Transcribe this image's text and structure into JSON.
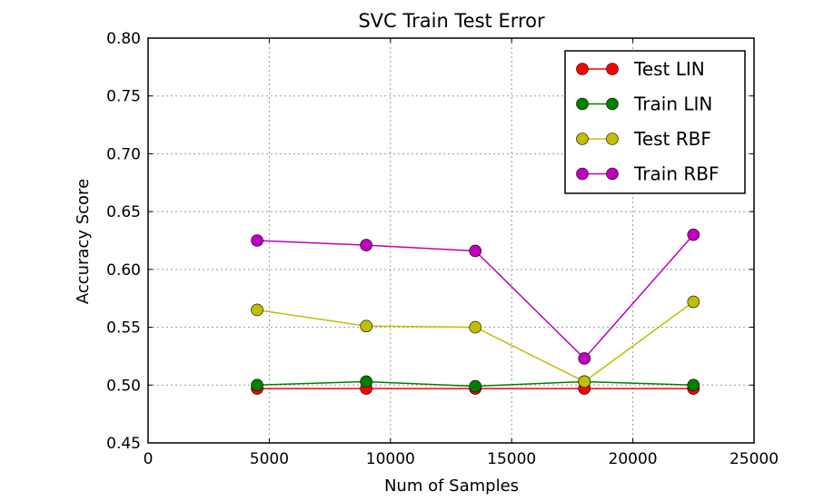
{
  "chart_data": {
    "type": "line",
    "title": "SVC Train Test Error",
    "xlabel": "Num of Samples",
    "ylabel": "Accuracy Score",
    "xlim": [
      0,
      25000
    ],
    "ylim": [
      0.45,
      0.8
    ],
    "x_ticks": [
      0,
      5000,
      10000,
      15000,
      20000,
      25000
    ],
    "x_tick_labels": [
      "0",
      "5000",
      "10000",
      "15000",
      "20000",
      "25000"
    ],
    "y_ticks": [
      0.45,
      0.5,
      0.55,
      0.6,
      0.65,
      0.7,
      0.75,
      0.8
    ],
    "y_tick_labels": [
      "0.45",
      "0.50",
      "0.55",
      "0.60",
      "0.65",
      "0.70",
      "0.75",
      "0.80"
    ],
    "grid": true,
    "legend_position": "top-right",
    "x": [
      4500,
      9000,
      13500,
      18000,
      22500
    ],
    "series": [
      {
        "name": "Test LIN",
        "color": "#ff0000",
        "values": [
          0.497,
          0.497,
          0.497,
          0.497,
          0.497
        ]
      },
      {
        "name": "Train LIN",
        "color": "#008000",
        "values": [
          0.5,
          0.503,
          0.499,
          0.503,
          0.5
        ]
      },
      {
        "name": "Test RBF",
        "color": "#bfbf00",
        "values": [
          0.565,
          0.551,
          0.55,
          0.503,
          0.572
        ]
      },
      {
        "name": "Train RBF",
        "color": "#bf00bf",
        "values": [
          0.625,
          0.621,
          0.616,
          0.523,
          0.63
        ]
      }
    ]
  }
}
